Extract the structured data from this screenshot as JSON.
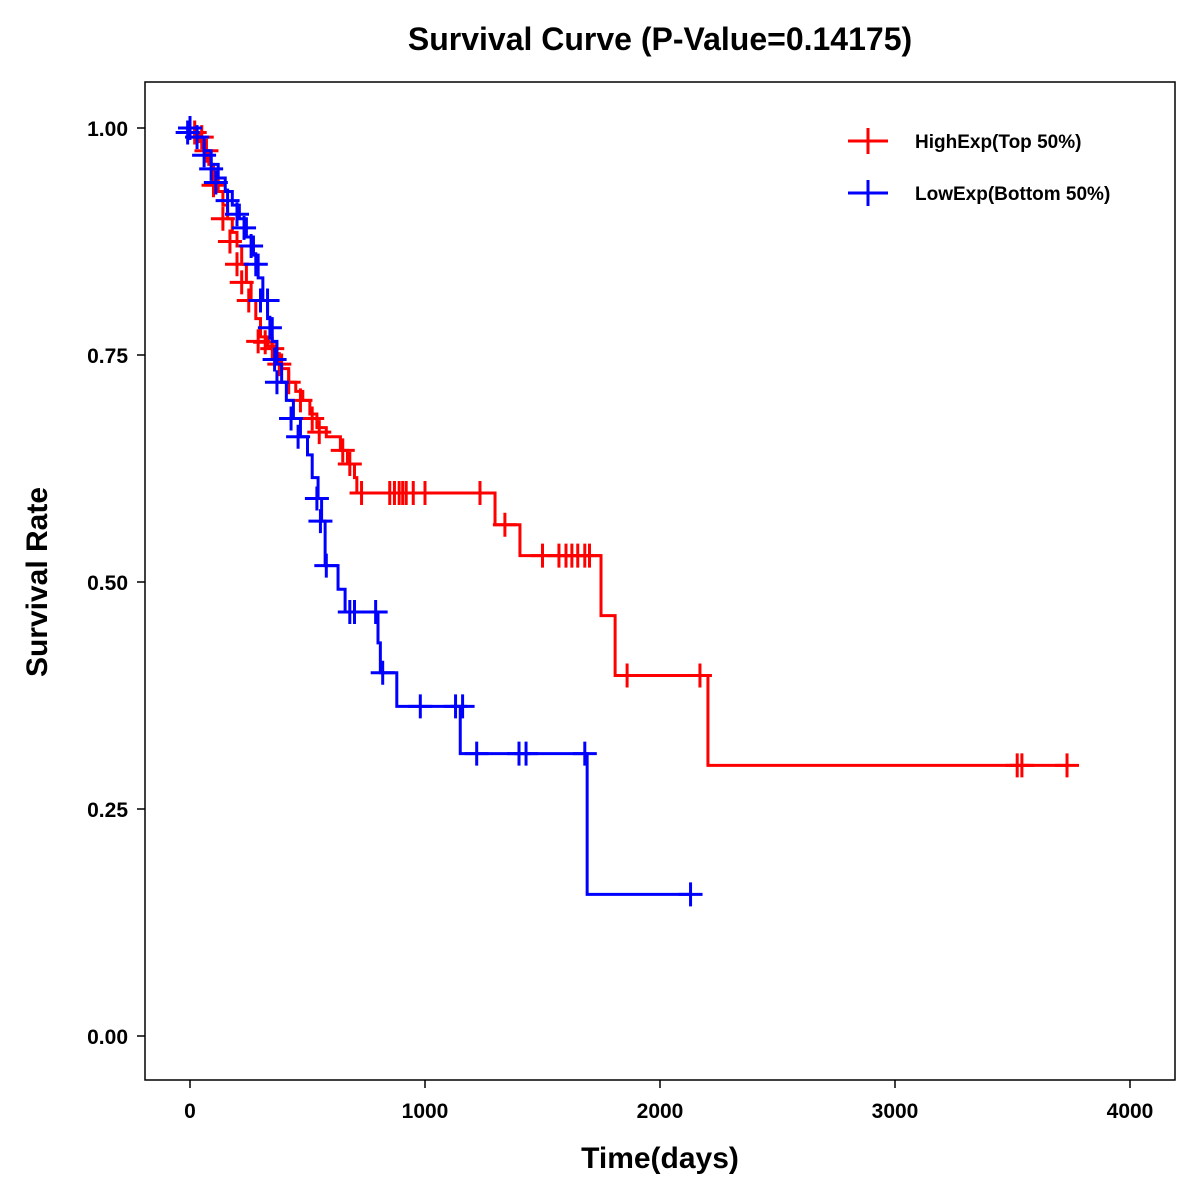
{
  "chart_data": {
    "type": "line",
    "subtype": "kaplan-meier",
    "title": "Survival Curve (P-Value=0.14175)",
    "xlabel": "Time(days)",
    "ylabel": "Survival Rate",
    "xlim": [
      -200,
      4200
    ],
    "ylim": [
      -0.05,
      1.05
    ],
    "xticks": [
      0,
      1000,
      2000,
      3000,
      4000
    ],
    "xtick_labels": [
      "0",
      "1000",
      "2000",
      "3000",
      "4000"
    ],
    "yticks": [
      0,
      0.25,
      0.5,
      0.75,
      1.0
    ],
    "ytick_labels": [
      "0.00",
      "0.25",
      "0.50",
      "0.75",
      "1.00"
    ],
    "grid": false,
    "legend_position": "top-right",
    "series": [
      {
        "name": "HighExp(Top 50%)",
        "color": "#ff0000",
        "steps": [
          [
            0,
            1
          ],
          [
            20,
            0.993
          ],
          [
            40,
            0.985
          ],
          [
            60,
            0.975
          ],
          [
            80,
            0.96
          ],
          [
            100,
            0.945
          ],
          [
            120,
            0.93
          ],
          [
            140,
            0.915
          ],
          [
            160,
            0.9
          ],
          [
            180,
            0.885
          ],
          [
            200,
            0.87
          ],
          [
            220,
            0.85
          ],
          [
            240,
            0.83
          ],
          [
            260,
            0.81
          ],
          [
            280,
            0.79
          ],
          [
            300,
            0.77
          ],
          [
            330,
            0.76
          ],
          [
            360,
            0.75
          ],
          [
            390,
            0.735
          ],
          [
            420,
            0.72
          ],
          [
            450,
            0.71
          ],
          [
            480,
            0.7
          ],
          [
            510,
            0.685
          ],
          [
            540,
            0.67
          ],
          [
            580,
            0.66
          ],
          [
            640,
            0.645
          ],
          [
            670,
            0.63
          ],
          [
            700,
            0.615
          ],
          [
            710,
            0.598
          ],
          [
            1298,
            0.563
          ],
          [
            1404,
            0.529
          ],
          [
            1749,
            0.463
          ],
          [
            1809,
            0.397
          ],
          [
            2204,
            0.298
          ]
        ],
        "end_time": 3732,
        "censored": [
          [
            20,
            0.995
          ],
          [
            50,
            0.99
          ],
          [
            70,
            0.975
          ],
          [
            100,
            0.937
          ],
          [
            140,
            0.9
          ],
          [
            170,
            0.875
          ],
          [
            200,
            0.85
          ],
          [
            220,
            0.83
          ],
          [
            250,
            0.81
          ],
          [
            290,
            0.765
          ],
          [
            320,
            0.764
          ],
          [
            350,
            0.757
          ],
          [
            380,
            0.74
          ],
          [
            420,
            0.72
          ],
          [
            470,
            0.7
          ],
          [
            520,
            0.68
          ],
          [
            550,
            0.665
          ],
          [
            650,
            0.645
          ],
          [
            680,
            0.63
          ],
          [
            730,
            0.598
          ],
          [
            850,
            0.598
          ],
          [
            870,
            0.598
          ],
          [
            890,
            0.598
          ],
          [
            905,
            0.598
          ],
          [
            920,
            0.598
          ],
          [
            950,
            0.598
          ],
          [
            1000,
            0.598
          ],
          [
            1234,
            0.598
          ],
          [
            1340,
            0.563
          ],
          [
            1500,
            0.529
          ],
          [
            1570,
            0.529
          ],
          [
            1600,
            0.529
          ],
          [
            1625,
            0.529
          ],
          [
            1650,
            0.529
          ],
          [
            1680,
            0.529
          ],
          [
            1700,
            0.529
          ],
          [
            1860,
            0.397
          ],
          [
            2170,
            0.397
          ],
          [
            3520,
            0.298
          ],
          [
            3540,
            0.298
          ],
          [
            3732,
            0.298
          ]
        ]
      },
      {
        "name": "LowExp(Bottom 50%)",
        "color": "#0000ff",
        "steps": [
          [
            0,
            1
          ],
          [
            30,
            0.99
          ],
          [
            60,
            0.975
          ],
          [
            90,
            0.96
          ],
          [
            120,
            0.945
          ],
          [
            150,
            0.93
          ],
          [
            180,
            0.915
          ],
          [
            210,
            0.9
          ],
          [
            240,
            0.88
          ],
          [
            270,
            0.86
          ],
          [
            290,
            0.835
          ],
          [
            310,
            0.81
          ],
          [
            330,
            0.79
          ],
          [
            350,
            0.765
          ],
          [
            370,
            0.74
          ],
          [
            390,
            0.72
          ],
          [
            410,
            0.7
          ],
          [
            440,
            0.68
          ],
          [
            470,
            0.66
          ],
          [
            500,
            0.64
          ],
          [
            520,
            0.615
          ],
          [
            545,
            0.592
          ],
          [
            560,
            0.567
          ],
          [
            575,
            0.518
          ],
          [
            630,
            0.492
          ],
          [
            660,
            0.467
          ],
          [
            800,
            0.433
          ],
          [
            810,
            0.4
          ],
          [
            880,
            0.363
          ],
          [
            1150,
            0.311
          ],
          [
            1690,
            0.156
          ]
        ],
        "end_time": 2130,
        "censored": [
          [
            -10,
            0.995
          ],
          [
            0,
            1.0
          ],
          [
            30,
            0.99
          ],
          [
            60,
            0.97
          ],
          [
            90,
            0.955
          ],
          [
            110,
            0.94
          ],
          [
            160,
            0.92
          ],
          [
            200,
            0.905
          ],
          [
            230,
            0.89
          ],
          [
            260,
            0.87
          ],
          [
            280,
            0.85
          ],
          [
            300,
            0.81
          ],
          [
            330,
            0.81
          ],
          [
            340,
            0.78
          ],
          [
            360,
            0.745
          ],
          [
            370,
            0.72
          ],
          [
            430,
            0.68
          ],
          [
            460,
            0.66
          ],
          [
            540,
            0.592
          ],
          [
            555,
            0.567
          ],
          [
            580,
            0.518
          ],
          [
            680,
            0.467
          ],
          [
            700,
            0.467
          ],
          [
            790,
            0.467
          ],
          [
            820,
            0.4
          ],
          [
            980,
            0.363
          ],
          [
            1130,
            0.363
          ],
          [
            1160,
            0.363
          ],
          [
            1220,
            0.311
          ],
          [
            1400,
            0.311
          ],
          [
            1430,
            0.311
          ],
          [
            1680,
            0.311
          ],
          [
            2130,
            0.156
          ]
        ]
      }
    ]
  }
}
